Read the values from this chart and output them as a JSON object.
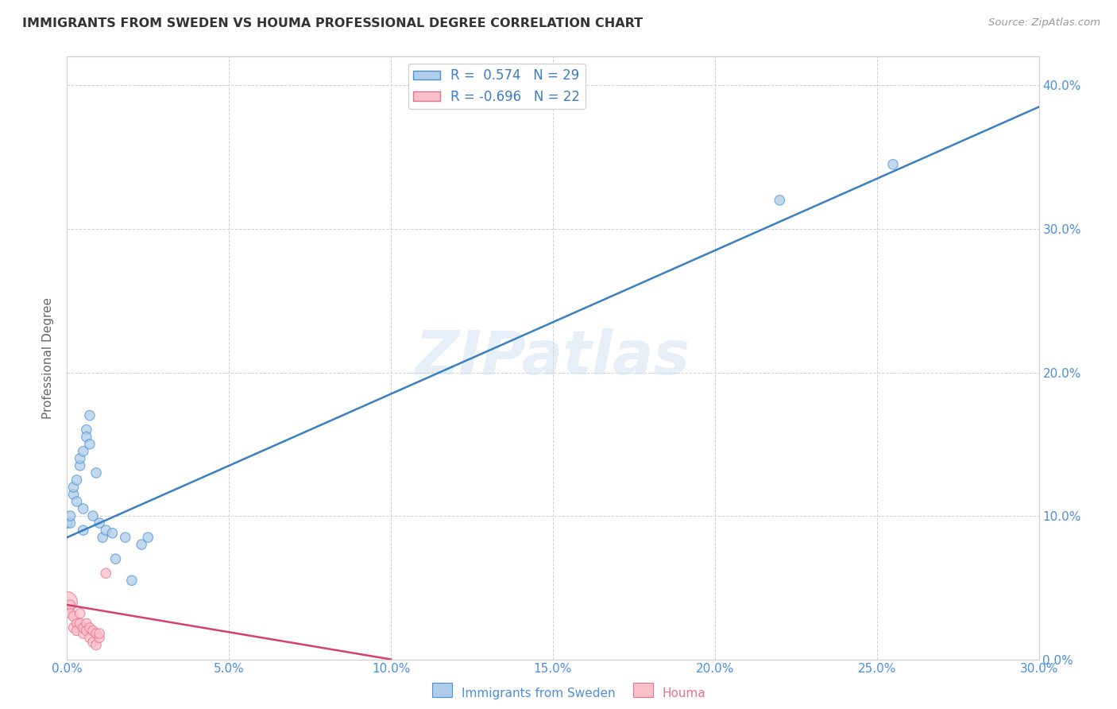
{
  "title": "IMMIGRANTS FROM SWEDEN VS HOUMA PROFESSIONAL DEGREE CORRELATION CHART",
  "source": "Source: ZipAtlas.com",
  "ylabel_label": "Professional Degree",
  "xlim": [
    0.0,
    0.3
  ],
  "ylim": [
    0.0,
    0.42
  ],
  "xticks": [
    0.0,
    0.05,
    0.1,
    0.15,
    0.2,
    0.25,
    0.3
  ],
  "yticks": [
    0.0,
    0.1,
    0.2,
    0.3,
    0.4
  ],
  "blue_R": 0.574,
  "blue_N": 29,
  "pink_R": -0.696,
  "pink_N": 22,
  "blue_fill_color": "#aecde8",
  "pink_fill_color": "#f9c0c8",
  "blue_edge_color": "#4a90d9",
  "pink_edge_color": "#e87090",
  "blue_line_color": "#3a7fc1",
  "pink_line_color": "#d44070",
  "watermark": "ZIPatlas",
  "blue_scatter_x": [
    0.0,
    0.001,
    0.001,
    0.002,
    0.002,
    0.003,
    0.003,
    0.004,
    0.004,
    0.005,
    0.005,
    0.005,
    0.006,
    0.006,
    0.007,
    0.007,
    0.008,
    0.009,
    0.01,
    0.011,
    0.012,
    0.014,
    0.015,
    0.018,
    0.02,
    0.023,
    0.025,
    0.22,
    0.255
  ],
  "blue_scatter_y": [
    0.095,
    0.095,
    0.1,
    0.115,
    0.12,
    0.11,
    0.125,
    0.135,
    0.14,
    0.145,
    0.105,
    0.09,
    0.16,
    0.155,
    0.17,
    0.15,
    0.1,
    0.13,
    0.095,
    0.085,
    0.09,
    0.088,
    0.07,
    0.085,
    0.055,
    0.08,
    0.085,
    0.32,
    0.345
  ],
  "blue_sizes": [
    80,
    80,
    80,
    80,
    80,
    80,
    80,
    80,
    80,
    80,
    80,
    80,
    80,
    80,
    80,
    80,
    80,
    80,
    80,
    80,
    80,
    80,
    80,
    80,
    80,
    80,
    80,
    80,
    80
  ],
  "pink_scatter_x": [
    0.0,
    0.001,
    0.001,
    0.002,
    0.002,
    0.003,
    0.003,
    0.004,
    0.004,
    0.005,
    0.005,
    0.006,
    0.006,
    0.007,
    0.007,
    0.008,
    0.008,
    0.009,
    0.009,
    0.01,
    0.01,
    0.012
  ],
  "pink_scatter_y": [
    0.04,
    0.038,
    0.032,
    0.03,
    0.022,
    0.025,
    0.02,
    0.032,
    0.025,
    0.018,
    0.022,
    0.025,
    0.02,
    0.022,
    0.015,
    0.02,
    0.012,
    0.018,
    0.01,
    0.015,
    0.018,
    0.06
  ],
  "pink_sizes": [
    350,
    80,
    80,
    80,
    80,
    80,
    80,
    80,
    80,
    80,
    80,
    80,
    80,
    80,
    80,
    80,
    80,
    80,
    80,
    80,
    80,
    80
  ],
  "blue_line_x": [
    0.0,
    0.3
  ],
  "blue_line_y": [
    0.085,
    0.385
  ],
  "pink_line_x": [
    0.0,
    0.1
  ],
  "pink_line_y": [
    0.038,
    0.0
  ]
}
